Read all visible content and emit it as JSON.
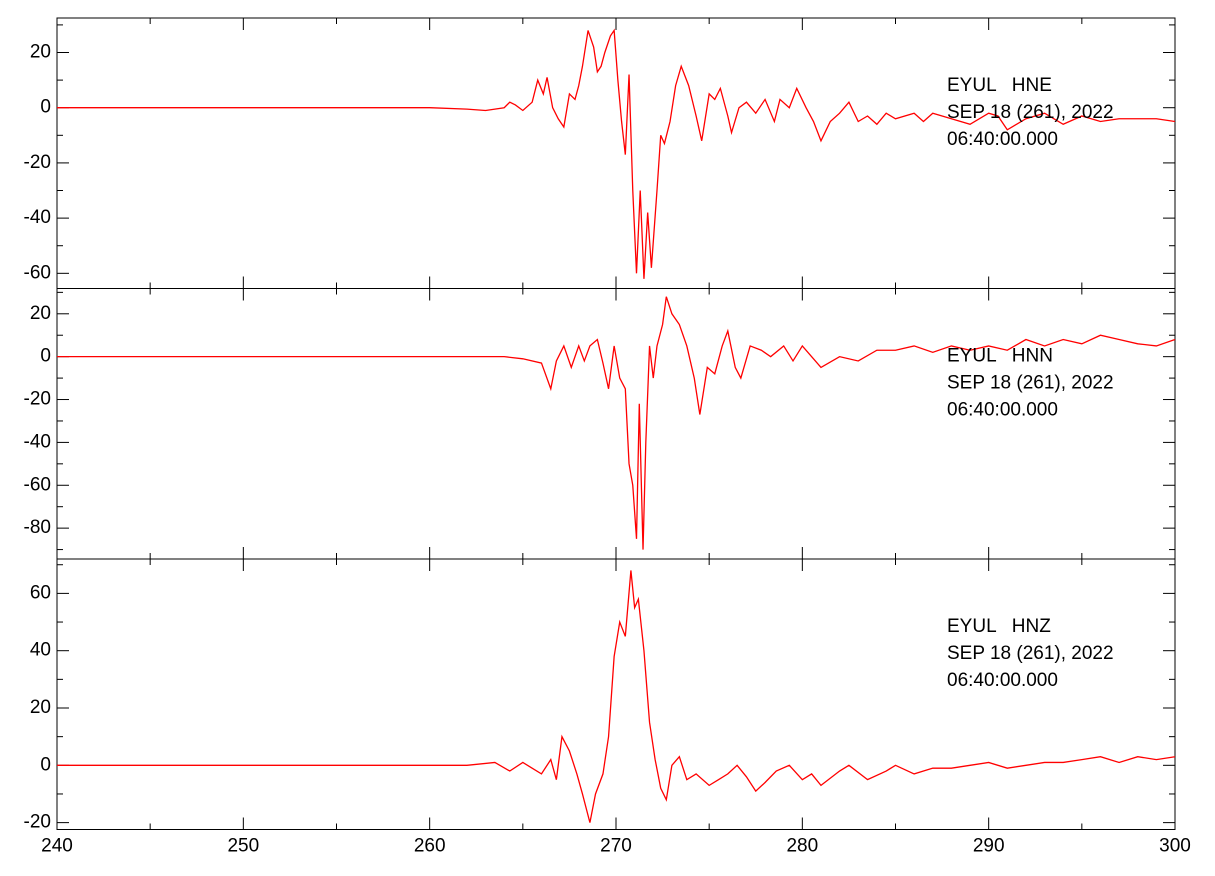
{
  "chart_data": [
    {
      "type": "line",
      "color": "#ff0000",
      "annotations": [
        "EYUL   HNE",
        "SEP 18 (261), 2022",
        "06:40:00.000"
      ],
      "xlim": [
        240,
        300
      ],
      "xticks": [
        240,
        250,
        260,
        270,
        280,
        290,
        300
      ],
      "ylim": [
        -65.5,
        32.5
      ],
      "yticks": [
        -60,
        -40,
        -20,
        0,
        20
      ],
      "x": [
        240,
        260,
        262,
        263,
        264,
        264.3,
        264.6,
        265,
        265.5,
        265.8,
        266.1,
        266.3,
        266.6,
        266.9,
        267.2,
        267.5,
        267.8,
        268,
        268.2,
        268.5,
        268.8,
        269,
        269.2,
        269.4,
        269.7,
        269.9,
        270.1,
        270.3,
        270.5,
        270.7,
        270.9,
        271.1,
        271.3,
        271.5,
        271.7,
        271.9,
        272.2,
        272.4,
        272.6,
        272.9,
        273.2,
        273.5,
        273.9,
        274.3,
        274.6,
        275,
        275.3,
        275.6,
        276,
        276.2,
        276.6,
        277,
        277.5,
        278,
        278.5,
        278.8,
        279.3,
        279.7,
        280.2,
        280.6,
        281,
        281.5,
        282,
        282.5,
        283,
        283.5,
        284,
        284.5,
        285,
        286,
        286.5,
        287,
        288,
        289,
        290,
        290.5,
        291,
        292,
        293,
        294,
        295,
        296,
        297,
        298,
        299,
        300
      ],
      "values": [
        0,
        0,
        -0.5,
        -1,
        0,
        2,
        1,
        -1,
        2,
        10,
        5,
        11,
        0,
        -4,
        -7,
        5,
        3,
        8,
        15,
        28,
        22,
        13,
        15,
        20,
        26,
        28,
        10,
        -5,
        -17,
        12,
        -30,
        -60,
        -30,
        -62,
        -38,
        -58,
        -30,
        -10,
        -13,
        -5,
        8,
        15,
        8,
        -3,
        -12,
        5,
        3,
        7,
        -3,
        -9,
        0,
        2,
        -2,
        3,
        -5,
        3,
        0,
        7,
        0,
        -5,
        -12,
        -5,
        -2,
        2,
        -5,
        -3,
        -6,
        -2,
        -4,
        -2,
        -5,
        -2,
        -4,
        -6,
        -2,
        -3,
        -8,
        -4,
        -2,
        -6,
        -3,
        -5,
        -4,
        -4,
        -4,
        -5
      ]
    },
    {
      "type": "line",
      "color": "#ff0000",
      "annotations": [
        "EYUL   HNN",
        "SEP 18 (261), 2022",
        "06:40:00.000"
      ],
      "xlim": [
        240,
        300
      ],
      "xticks": [
        240,
        250,
        260,
        270,
        280,
        290,
        300
      ],
      "ylim": [
        -94.4,
        31.8
      ],
      "yticks": [
        -80,
        -60,
        -40,
        -20,
        0,
        20
      ],
      "x": [
        240,
        261,
        264,
        265,
        266,
        266.5,
        266.8,
        267.2,
        267.6,
        268,
        268.3,
        268.6,
        269,
        269.3,
        269.6,
        269.9,
        270.2,
        270.5,
        270.7,
        270.9,
        271.1,
        271.25,
        271.45,
        271.6,
        271.8,
        272,
        272.2,
        272.5,
        272.7,
        273,
        273.4,
        273.8,
        274.2,
        274.5,
        274.9,
        275.3,
        275.7,
        276,
        276.4,
        276.7,
        277.2,
        277.8,
        278.3,
        279,
        279.5,
        280,
        280.5,
        281,
        282,
        283,
        284,
        285,
        286,
        287,
        288,
        289,
        290,
        291,
        292,
        293,
        294,
        295,
        296,
        297,
        298,
        299,
        300
      ],
      "values": [
        0,
        0,
        0,
        -1,
        -3,
        -15,
        -2,
        5,
        -5,
        5,
        -2,
        5,
        8,
        -3,
        -15,
        5,
        -10,
        -15,
        -50,
        -60,
        -85,
        -22,
        -90,
        -40,
        5,
        -10,
        5,
        15,
        28,
        20,
        15,
        5,
        -10,
        -27,
        -5,
        -8,
        5,
        12,
        -5,
        -10,
        5,
        3,
        0,
        5,
        -2,
        5,
        0,
        -5,
        0,
        -2,
        3,
        3,
        5,
        2,
        5,
        3,
        5,
        3,
        8,
        5,
        8,
        6,
        10,
        8,
        6,
        5,
        8
      ]
    },
    {
      "type": "line",
      "color": "#ff0000",
      "annotations": [
        "EYUL   HNZ",
        "SEP 18 (261), 2022",
        "06:40:00.000"
      ],
      "xlim": [
        240,
        300
      ],
      "xticks": [
        240,
        250,
        260,
        270,
        280,
        290,
        300
      ],
      "ylim": [
        -22.4,
        72
      ],
      "yticks": [
        -20,
        0,
        20,
        40,
        60
      ],
      "x": [
        240,
        260,
        262,
        263.5,
        264.3,
        265,
        265.5,
        266,
        266.5,
        266.8,
        267.1,
        267.5,
        267.9,
        268.2,
        268.6,
        268.9,
        269.3,
        269.6,
        269.9,
        270.2,
        270.5,
        270.8,
        271,
        271.2,
        271.5,
        271.8,
        272.1,
        272.4,
        272.7,
        273,
        273.4,
        273.8,
        274.3,
        275,
        275.5,
        276,
        276.5,
        277,
        277.5,
        278,
        278.6,
        279.3,
        280,
        280.5,
        281,
        282,
        282.5,
        283.5,
        284.5,
        285,
        286,
        287,
        288,
        289,
        290,
        291,
        292,
        293,
        294,
        295,
        296,
        297,
        298,
        299,
        300
      ],
      "values": [
        0,
        0,
        0,
        1,
        -2,
        1,
        -1,
        -3,
        2,
        -5,
        10,
        5,
        -3,
        -10,
        -20,
        -10,
        -3,
        10,
        38,
        50,
        45,
        68,
        55,
        58,
        40,
        15,
        2,
        -8,
        -12,
        0,
        3,
        -5,
        -3,
        -7,
        -5,
        -3,
        0,
        -4,
        -9,
        -6,
        -2,
        0,
        -5,
        -3,
        -7,
        -2,
        0,
        -5,
        -2,
        0,
        -3,
        -1,
        -1,
        0,
        1,
        -1,
        0,
        1,
        1,
        2,
        3,
        1,
        3,
        2,
        3
      ]
    }
  ]
}
